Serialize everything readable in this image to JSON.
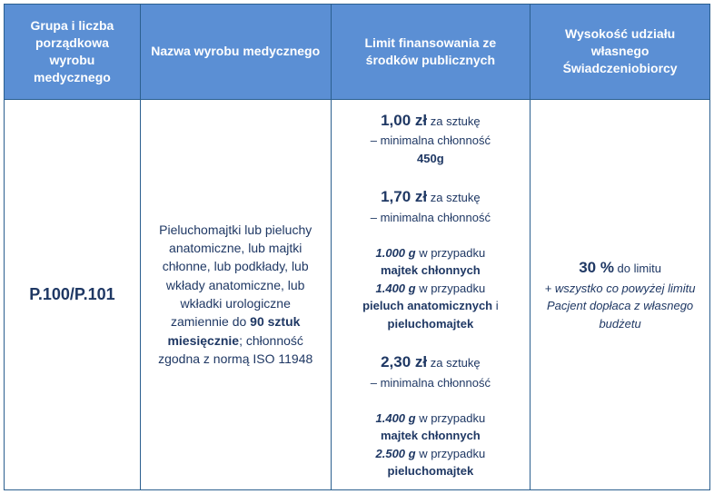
{
  "headers": {
    "col1": "Grupa i liczba porządkowa wyrobu medycznego",
    "col2": "Nazwa wyrobu medycznego",
    "col3": "Limit finansowania ze środków publicznych",
    "col4": "Wysokość udziału własnego Świadczeniobiorcy"
  },
  "body": {
    "code": "P.100/P.101",
    "description": {
      "pre": "Pieluchomajtki lub pieluchy anatomiczne, lub majtki chłonne, lub podkłady, lub wkłady anatomiczne, lub wkładki urologiczne zamiennie do ",
      "bold": "90 sztuk miesięcznie",
      "post": "; chłonność zgodna z normą ISO 11948"
    },
    "limits": [
      {
        "price": "1,00 zł",
        "unit": " za sztukę",
        "line1": "– minimalna chłonność",
        "bold1": "450g"
      },
      {
        "price": "1,70 zł",
        "unit": " za sztukę",
        "line1": "– minimalna chłonność",
        "spec1_g": "1.000 g",
        "spec1_txt": " w przypadku ",
        "spec1_bold": "majtek chłonnych",
        "spec2_g": "1.400 g",
        "spec2_txt": " w przypadku ",
        "spec2_bold": "pieluch anatomicznych",
        "spec2_and": " i ",
        "spec2_bold2": "pieluchomajtek"
      },
      {
        "price": "2,30 zł",
        "unit": " za sztukę",
        "line1": "– minimalna chłonność",
        "spec1_g": "1.400 g",
        "spec1_txt": " w przypadku ",
        "spec1_bold": "majtek chłonnych",
        "spec2_g": "2.500 g",
        "spec2_txt": " w przypadku ",
        "spec2_bold": "pieluchomajtek"
      }
    ],
    "share": {
      "pct": "30 %",
      "pct_txt": " do limitu",
      "note": "+ wszystko co powyżej limitu Pacjent dopłaca z własnego budżetu"
    }
  },
  "colors": {
    "header_bg": "#5b8fd4",
    "header_text": "#ffffff",
    "border": "#2b5f8f",
    "body_text": "#1f3864"
  }
}
